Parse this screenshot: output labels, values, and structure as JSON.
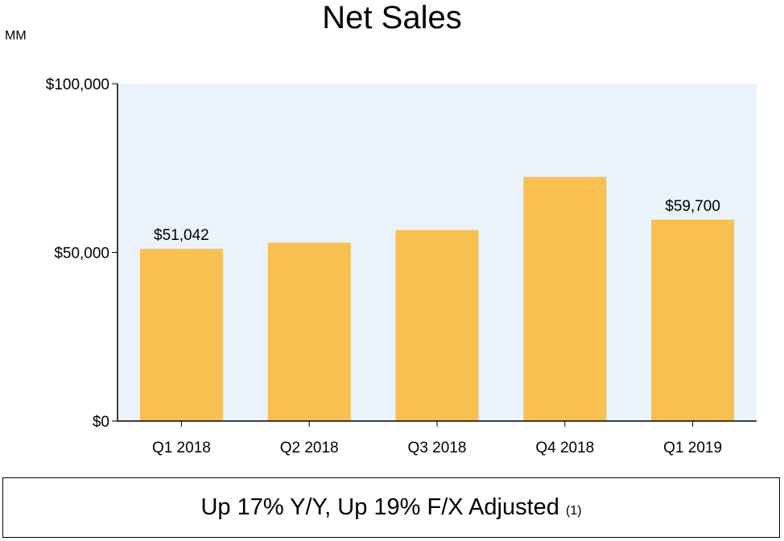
{
  "chart_data": {
    "type": "bar",
    "title": "Net Sales",
    "unit_label": "MM",
    "categories": [
      "Q1 2018",
      "Q2 2018",
      "Q3 2018",
      "Q4 2018",
      "Q1 2019"
    ],
    "values": [
      51042,
      52886,
      56576,
      72383,
      59700
    ],
    "data_labels": [
      "$51,042",
      "",
      "",
      "",
      "$59,700"
    ],
    "ylim": [
      0,
      100000
    ],
    "yticks": [
      0,
      50000,
      100000
    ],
    "ytick_labels": [
      "$0",
      "$50,000",
      "$100,000"
    ],
    "xlabel": "",
    "ylabel": "",
    "grid": false,
    "legend": "none"
  },
  "colors": {
    "bar": "#F8C050",
    "plot_bg": "#EAF2FC",
    "axis": "#000000"
  },
  "callout": {
    "text": "Up 17% Y/Y, Up 19% F/X Adjusted",
    "footnote": "(1)"
  }
}
